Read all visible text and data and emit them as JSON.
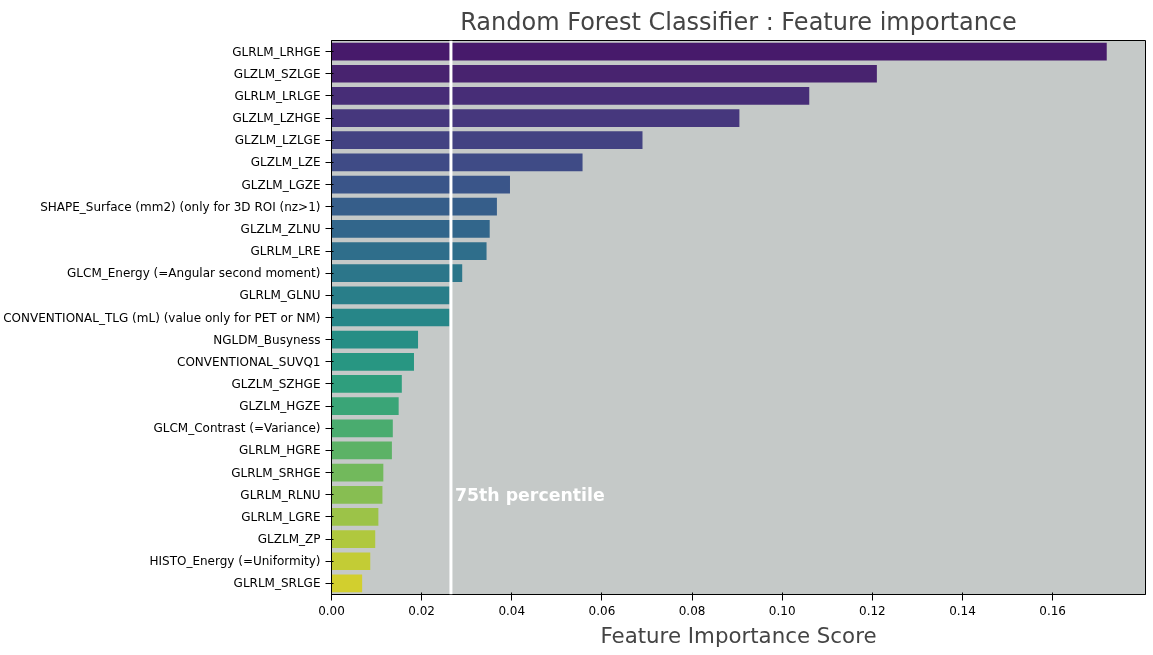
{
  "chart_data": {
    "type": "bar",
    "orientation": "horizontal",
    "title": "Random Forest Classifier : Feature importance",
    "xlabel": "Feature Importance Score",
    "categories": [
      "GLRLM_LRHGE",
      "GLZLM_SZLGE",
      "GLRLM_LRLGE",
      "GLZLM_LZHGE",
      "GLZLM_LZLGE",
      "GLZLM_LZE",
      "GLZLM_LGZE",
      "SHAPE_Surface (mm2) (only for 3D ROI (nz>1)",
      "GLZLM_ZLNU",
      "GLRLM_LRE",
      "GLCM_Energy (=Angular second moment)",
      "GLRLM_GLNU",
      "CONVENTIONAL_TLG (mL) (value only for PET or NM)",
      "NGLDM_Busyness",
      "CONVENTIONAL_SUVQ1",
      "GLZLM_SZHGE",
      "GLZLM_HGZE",
      "GLCM_Contrast (=Variance)",
      "GLRLM_HGRE",
      "GLRLM_SRHGE",
      "GLRLM_RLNU",
      "GLRLM_LGRE",
      "GLZLM_ZP",
      "HISTO_Energy (=Uniformity)",
      "GLRLM_SRLGE"
    ],
    "values": [
      0.172,
      0.121,
      0.106,
      0.0905,
      0.069,
      0.0557,
      0.0396,
      0.0367,
      0.0351,
      0.0344,
      0.029,
      0.0262,
      0.0262,
      0.0192,
      0.0183,
      0.0156,
      0.0149,
      0.0136,
      0.0134,
      0.0115,
      0.0113,
      0.0104,
      0.0097,
      0.0086,
      0.0068
    ],
    "colors": [
      "#471a6b",
      "#48236f",
      "#472d77",
      "#46377d",
      "#434282",
      "#3f4b86",
      "#3a5589",
      "#365e8a",
      "#32668b",
      "#2f6e8b",
      "#2c768a",
      "#297e89",
      "#278688",
      "#268e85",
      "#289682",
      "#2f9e7d",
      "#3aa577",
      "#4aac6f",
      "#5cb266",
      "#72b95c",
      "#87be52",
      "#9cc348",
      "#b0c83e",
      "#c3cc35",
      "#d2cf2e"
    ],
    "xlim": [
      0,
      0.1806
    ],
    "xticks": [
      {
        "value": 0,
        "label": "0.00"
      },
      {
        "value": 0.02,
        "label": "0.02"
      },
      {
        "value": 0.04,
        "label": "0.04"
      },
      {
        "value": 0.06,
        "label": "0.06"
      },
      {
        "value": 0.08,
        "label": "0.08"
      },
      {
        "value": 0.1,
        "label": "0.10"
      },
      {
        "value": 0.12,
        "label": "0.12"
      },
      {
        "value": 0.14,
        "label": "0.14"
      },
      {
        "value": 0.16,
        "label": "0.16"
      }
    ],
    "ref_lines": [
      {
        "axis": "x",
        "value": 0.0265,
        "color": "#ffffff"
      }
    ],
    "annotations": [
      {
        "text": "75th percentile",
        "x": 0.0265,
        "y": "GLRLM_RLNU"
      }
    ],
    "grid": false
  }
}
